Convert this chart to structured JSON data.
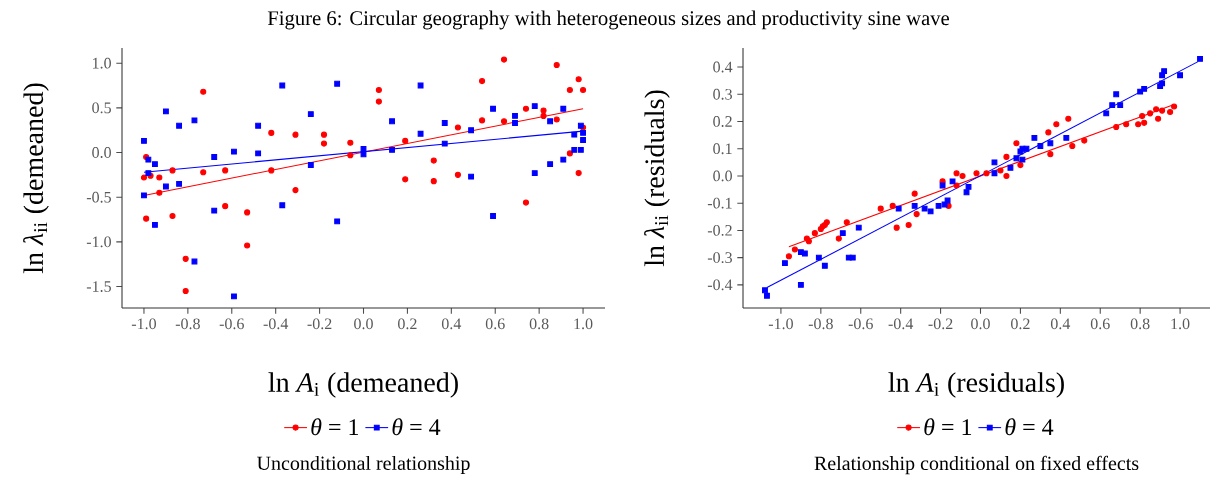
{
  "chart_data": [
    {
      "type": "scatter",
      "title": "Figure 6: Circular geography with heterogeneous sizes and productivity sine wave",
      "xlabel": "ln *A*$_{i}$ (demeaned)",
      "ylabel": "ln *λ*$_{ii}$ (demeaned)",
      "annotations": [
        "Unconditional relationship"
      ],
      "legend": "bottom",
      "grid": false,
      "xlim": [
        -1.1,
        1.1
      ],
      "ylim": [
        -1.74,
        1.17
      ],
      "xticks": [
        {
          "value": -1,
          "label": "-1.0"
        },
        {
          "value": -0.8,
          "label": "-0.8"
        },
        {
          "value": -0.6,
          "label": "-0.6"
        },
        {
          "value": -0.4,
          "label": "-0.4"
        },
        {
          "value": -0.2,
          "label": "-0.2"
        },
        {
          "value": 0,
          "label": "0.0"
        },
        {
          "value": 0.2,
          "label": "0.2"
        },
        {
          "value": 0.4,
          "label": "0.4"
        },
        {
          "value": 0.6,
          "label": "0.6"
        },
        {
          "value": 0.8,
          "label": "0.8"
        },
        {
          "value": 1,
          "label": "1.0"
        }
      ],
      "yticks": [
        {
          "value": -1.5,
          "label": "-1.5"
        },
        {
          "value": -1,
          "label": "-1.0"
        },
        {
          "value": -0.5,
          "label": "-0.5"
        },
        {
          "value": 0,
          "label": "0.0"
        },
        {
          "value": 0.5,
          "label": "0.5"
        },
        {
          "value": 1,
          "label": "1.0"
        }
      ],
      "series": [
        {
          "name": "*θ* = 1",
          "marker": "circle",
          "color": "#ff0000",
          "x": [
            -1.0,
            -0.99,
            -0.99,
            -0.97,
            -0.93,
            -0.93,
            -0.87,
            -0.87,
            -0.81,
            -0.81,
            -0.73,
            -0.73,
            -0.63,
            -0.63,
            -0.53,
            -0.53,
            -0.42,
            -0.42,
            -0.31,
            -0.31,
            -0.18,
            -0.18,
            -0.06,
            -0.06,
            0.07,
            0.07,
            0.19,
            0.19,
            0.32,
            0.32,
            0.43,
            0.43,
            0.54,
            0.54,
            0.64,
            0.64,
            0.74,
            0.74,
            0.82,
            0.82,
            0.88,
            0.88,
            0.94,
            0.94,
            0.98,
            0.98,
            1.0,
            1.0
          ],
          "values": [
            -0.28,
            -0.05,
            -0.74,
            -0.26,
            -0.28,
            -0.45,
            -0.2,
            -0.71,
            -1.19,
            -1.55,
            0.68,
            -0.22,
            -0.2,
            -0.6,
            -0.67,
            -1.04,
            0.22,
            -0.2,
            0.2,
            -0.42,
            0.2,
            0.1,
            0.11,
            -0.03,
            0.7,
            0.57,
            0.13,
            -0.3,
            -0.09,
            -0.32,
            0.28,
            -0.25,
            0.8,
            0.36,
            1.04,
            0.35,
            0.49,
            -0.56,
            0.47,
            0.41,
            0.98,
            0.37,
            0.7,
            -0.01,
            0.82,
            -0.23,
            0.7,
            0.28
          ]
        },
        {
          "name": "*θ* = 4",
          "marker": "square",
          "color": "#0000ff",
          "x": [
            -1.0,
            -1.0,
            -0.98,
            -0.98,
            -0.95,
            -0.95,
            -0.9,
            -0.9,
            -0.84,
            -0.84,
            -0.77,
            -0.77,
            -0.68,
            -0.68,
            -0.59,
            -0.59,
            -0.48,
            -0.48,
            -0.37,
            -0.37,
            -0.24,
            -0.24,
            -0.12,
            -0.12,
            0.0,
            0.0,
            0.13,
            0.13,
            0.26,
            0.26,
            0.37,
            0.37,
            0.49,
            0.49,
            0.59,
            0.59,
            0.69,
            0.69,
            0.78,
            0.78,
            0.85,
            0.85,
            0.91,
            0.91,
            0.96,
            0.96,
            0.99,
            0.99,
            1.0,
            1.0
          ],
          "values": [
            0.13,
            -0.48,
            -0.08,
            -0.23,
            -0.13,
            -0.81,
            0.46,
            -0.38,
            0.3,
            -0.35,
            0.36,
            -1.22,
            -0.05,
            -0.65,
            0.01,
            -1.61,
            0.3,
            -0.01,
            0.75,
            -0.59,
            0.43,
            -0.14,
            0.77,
            -0.77,
            0.04,
            -0.02,
            0.35,
            0.03,
            0.75,
            0.21,
            0.33,
            0.1,
            0.25,
            -0.27,
            0.49,
            -0.71,
            0.41,
            0.33,
            0.52,
            -0.23,
            0.35,
            -0.13,
            0.49,
            -0.08,
            0.2,
            0.03,
            0.3,
            0.03,
            0.22,
            0.14
          ]
        },
        {
          "type": "line",
          "marker": "none",
          "color": "#ff0000",
          "x": [
            -1.0,
            1.0
          ],
          "values": [
            -0.48,
            0.49
          ]
        },
        {
          "type": "line",
          "marker": "none",
          "color": "#0000ff",
          "x": [
            -1.0,
            1.0
          ],
          "values": [
            -0.22,
            0.24
          ]
        }
      ]
    },
    {
      "type": "scatter",
      "xlabel": "ln *A*$_{i}$ (residuals)",
      "ylabel": "ln *λ*$_{ii}$ (residuals)",
      "annotations": [
        "Relationship conditional on fixed effects"
      ],
      "legend": "bottom",
      "grid": false,
      "xlim": [
        -1.19,
        1.15
      ],
      "ylim": [
        -0.485,
        0.47
      ],
      "xticks": [
        {
          "value": -1,
          "label": "-1.0"
        },
        {
          "value": -0.8,
          "label": "-0.8"
        },
        {
          "value": -0.6,
          "label": "-0.6"
        },
        {
          "value": -0.4,
          "label": "-0.4"
        },
        {
          "value": -0.2,
          "label": "-0.2"
        },
        {
          "value": 0,
          "label": "0.0"
        },
        {
          "value": 0.2,
          "label": "0.2"
        },
        {
          "value": 0.4,
          "label": "0.4"
        },
        {
          "value": 0.6,
          "label": "0.6"
        },
        {
          "value": 0.8,
          "label": "0.8"
        },
        {
          "value": 1,
          "label": "1.0"
        }
      ],
      "yticks": [
        {
          "value": -0.4,
          "label": "-0.4"
        },
        {
          "value": -0.3,
          "label": "-0.3"
        },
        {
          "value": -0.2,
          "label": "-0.2"
        },
        {
          "value": -0.1,
          "label": "-0.1"
        },
        {
          "value": 0,
          "label": "0.0"
        },
        {
          "value": 0.1,
          "label": "0.1"
        },
        {
          "value": 0.2,
          "label": "0.2"
        },
        {
          "value": 0.3,
          "label": "0.3"
        },
        {
          "value": 0.4,
          "label": "0.4"
        }
      ],
      "series": [
        {
          "name": "*θ* = 1",
          "marker": "circle",
          "color": "#ff0000",
          "x": [
            -0.96,
            -0.93,
            -0.87,
            -0.86,
            -0.83,
            -0.8,
            -0.79,
            -0.78,
            -0.77,
            -0.71,
            -0.67,
            -0.5,
            -0.44,
            -0.42,
            -0.36,
            -0.33,
            -0.32,
            -0.19,
            -0.16,
            -0.12,
            -0.12,
            -0.09,
            -0.02,
            0.03,
            0.1,
            0.13,
            0.13,
            0.18,
            0.2,
            0.34,
            0.35,
            0.38,
            0.44,
            0.46,
            0.52,
            0.68,
            0.73,
            0.79,
            0.81,
            0.82,
            0.85,
            0.88,
            0.89,
            0.91,
            0.95,
            0.97
          ],
          "values": [
            -0.295,
            -0.27,
            -0.23,
            -0.24,
            -0.21,
            -0.195,
            -0.185,
            -0.18,
            -0.17,
            -0.23,
            -0.17,
            -0.12,
            -0.11,
            -0.19,
            -0.18,
            -0.065,
            -0.14,
            -0.02,
            -0.11,
            0.01,
            -0.035,
            0.0,
            0.01,
            0.01,
            0.02,
            0.07,
            0.0,
            0.12,
            0.04,
            0.16,
            0.08,
            0.19,
            0.21,
            0.11,
            0.13,
            0.18,
            0.19,
            0.19,
            0.22,
            0.195,
            0.23,
            0.245,
            0.21,
            0.24,
            0.235,
            0.255
          ]
        },
        {
          "name": "*θ* = 4",
          "marker": "square",
          "color": "#0000ff",
          "x": [
            -1.08,
            -1.07,
            -0.98,
            -0.9,
            -0.88,
            -0.9,
            -0.81,
            -0.78,
            -0.69,
            -0.66,
            -0.64,
            -0.61,
            -0.41,
            -0.33,
            -0.28,
            -0.25,
            -0.21,
            -0.19,
            -0.18,
            -0.165,
            -0.14,
            -0.07,
            -0.06,
            0.07,
            0.07,
            0.15,
            0.18,
            0.2,
            0.21,
            0.21,
            0.23,
            0.27,
            0.3,
            0.35,
            0.43,
            0.63,
            0.66,
            0.68,
            0.7,
            0.8,
            0.82,
            0.9,
            0.91,
            0.91,
            0.92,
            1.0,
            1.1
          ],
          "values": [
            -0.42,
            -0.44,
            -0.32,
            -0.28,
            -0.285,
            -0.4,
            -0.3,
            -0.33,
            -0.21,
            -0.3,
            -0.3,
            -0.19,
            -0.12,
            -0.11,
            -0.12,
            -0.13,
            -0.11,
            -0.035,
            -0.105,
            -0.09,
            -0.02,
            -0.06,
            -0.04,
            0.01,
            0.05,
            0.03,
            0.065,
            0.09,
            0.06,
            0.1,
            0.1,
            0.14,
            0.11,
            0.12,
            0.14,
            0.23,
            0.26,
            0.3,
            0.26,
            0.31,
            0.32,
            0.33,
            0.34,
            0.37,
            0.385,
            0.37,
            0.43
          ]
        },
        {
          "type": "line",
          "marker": "none",
          "color": "#ff0000",
          "x": [
            -0.96,
            0.96
          ],
          "values": [
            -0.26,
            0.26
          ]
        },
        {
          "type": "line",
          "marker": "none",
          "color": "#0000ff",
          "x": [
            -1.07,
            1.09
          ],
          "values": [
            -0.41,
            0.42
          ]
        }
      ]
    }
  ]
}
